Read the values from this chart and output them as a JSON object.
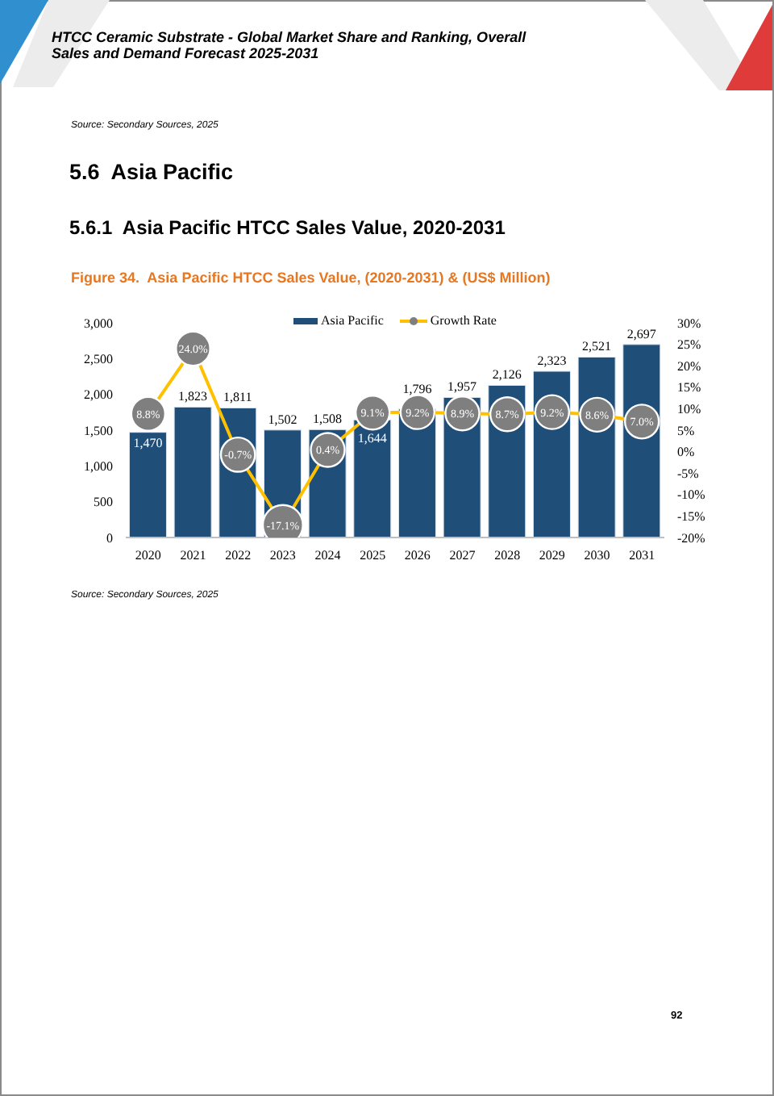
{
  "chart_data": {
    "type": "bar",
    "title": "Figure 34.  Asia Pacific HTCC Sales Value, (2020-2031) & (US$ Million)",
    "categories": [
      "2020",
      "2021",
      "2022",
      "2023",
      "2024",
      "2025",
      "2026",
      "2027",
      "2028",
      "2029",
      "2030",
      "2031"
    ],
    "series": [
      {
        "name": "Asia Pacific",
        "color": "#1f4e79",
        "values": [
          1470,
          1823,
          1811,
          1502,
          1508,
          1644,
          1796,
          1957,
          2126,
          2323,
          2521,
          2697
        ],
        "value_labels": [
          "1,470",
          "1,823",
          "1,811",
          "1,502",
          "1,508",
          "1,644",
          "1,796",
          "1,957",
          "2,126",
          "2,323",
          "2,521",
          "2,697"
        ]
      },
      {
        "name": "Growth Rate",
        "type": "line",
        "axis": "y2",
        "color": "#ffc000",
        "values": [
          8.8,
          24.0,
          -0.7,
          -17.1,
          0.4,
          9.1,
          9.2,
          8.9,
          8.7,
          9.2,
          8.6,
          7.0
        ],
        "value_labels": [
          "8.8%",
          "24.0%",
          "-0.7%",
          "-17.1%",
          "0.4%",
          "9.1%",
          "9.2%",
          "8.9%",
          "8.7%",
          "9.2%",
          "8.6%",
          "7.0%"
        ]
      }
    ],
    "ylim": [
      0,
      3000
    ],
    "yticks": [
      {
        "value": 0,
        "label": "0"
      },
      {
        "value": 500,
        "label": "500"
      },
      {
        "value": 1000,
        "label": "1,000"
      },
      {
        "value": 1500,
        "label": "1,500"
      },
      {
        "value": 2000,
        "label": "2,000"
      },
      {
        "value": 2500,
        "label": "2,500"
      },
      {
        "value": 3000,
        "label": "3,000"
      }
    ],
    "y2lim": [
      -20,
      30
    ],
    "y2ticks": [
      {
        "value": -20,
        "label": "-20%"
      },
      {
        "value": -15,
        "label": "-15%"
      },
      {
        "value": -10,
        "label": "-10%"
      },
      {
        "value": -5,
        "label": "-5%"
      },
      {
        "value": 0,
        "label": "0%"
      },
      {
        "value": 5,
        "label": "5%"
      },
      {
        "value": 10,
        "label": "10%"
      },
      {
        "value": 15,
        "label": "15%"
      },
      {
        "value": 20,
        "label": "20%"
      },
      {
        "value": 25,
        "label": "25%"
      },
      {
        "value": 30,
        "label": "30%"
      }
    ],
    "legend": "top",
    "marker": "circle",
    "annotations": [
      "HTCC Ceramic Substrate - Global Market Share and Ranking, Overall Sales and Demand Forecast 2025-2031",
      "Source: Secondary Sources, 2025",
      "5.6  Asia Pacific",
      "5.6.1  Asia Pacific HTCC Sales Value, 2020-2031",
      "Source: Secondary Sources, 2025",
      "92"
    ]
  }
}
